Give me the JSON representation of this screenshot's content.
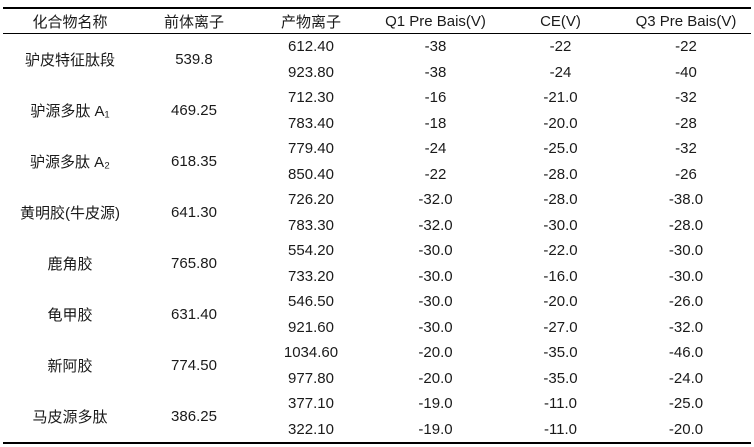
{
  "colors": {
    "background": "#ffffff",
    "text": "#1a1a1a",
    "rule": "#000000"
  },
  "table": {
    "headers": [
      {
        "label": "化合物名称"
      },
      {
        "label": "前体离子"
      },
      {
        "label": "产物离子"
      },
      {
        "label": "Q1 Pre Bais(V)"
      },
      {
        "label": "CE(V)"
      },
      {
        "label": "Q3 Pre Bais(V)"
      }
    ],
    "groups": [
      {
        "name": "驴皮特征肽段",
        "precursor": "539.8",
        "rows": [
          {
            "product": "612.40",
            "q1": "-38",
            "ce": "-22",
            "q3": "-22"
          },
          {
            "product": "923.80",
            "q1": "-38",
            "ce": "-24",
            "q3": "-40"
          }
        ]
      },
      {
        "name": "驴源多肽 A₁",
        "precursor": "469.25",
        "rows": [
          {
            "product": "712.30",
            "q1": "-16",
            "ce": "-21.0",
            "q3": "-32"
          },
          {
            "product": "783.40",
            "q1": "-18",
            "ce": "-20.0",
            "q3": "-28"
          }
        ]
      },
      {
        "name": "驴源多肽 A₂",
        "precursor": "618.35",
        "rows": [
          {
            "product": "779.40",
            "q1": "-24",
            "ce": "-25.0",
            "q3": "-32"
          },
          {
            "product": "850.40",
            "q1": "-22",
            "ce": "-28.0",
            "q3": "-26"
          }
        ]
      },
      {
        "name": "黄明胶(牛皮源)",
        "precursor": "641.30",
        "rows": [
          {
            "product": "726.20",
            "q1": "-32.0",
            "ce": "-28.0",
            "q3": "-38.0"
          },
          {
            "product": "783.30",
            "q1": "-32.0",
            "ce": "-30.0",
            "q3": "-28.0"
          }
        ]
      },
      {
        "name": "鹿角胶",
        "precursor": "765.80",
        "rows": [
          {
            "product": "554.20",
            "q1": "-30.0",
            "ce": "-22.0",
            "q3": "-30.0"
          },
          {
            "product": "733.20",
            "q1": "-30.0",
            "ce": "-16.0",
            "q3": "-30.0"
          }
        ]
      },
      {
        "name": "龟甲胶",
        "precursor": "631.40",
        "rows": [
          {
            "product": "546.50",
            "q1": "-30.0",
            "ce": "-20.0",
            "q3": "-26.0"
          },
          {
            "product": "921.60",
            "q1": "-30.0",
            "ce": "-27.0",
            "q3": "-32.0"
          }
        ]
      },
      {
        "name": "新阿胶",
        "precursor": "774.50",
        "rows": [
          {
            "product": "1034.60",
            "q1": "-20.0",
            "ce": "-35.0",
            "q3": "-46.0"
          },
          {
            "product": "977.80",
            "q1": "-20.0",
            "ce": "-35.0",
            "q3": "-24.0"
          }
        ]
      },
      {
        "name": "马皮源多肽",
        "precursor": "386.25",
        "rows": [
          {
            "product": "377.10",
            "q1": "-19.0",
            "ce": "-11.0",
            "q3": "-25.0"
          },
          {
            "product": "322.10",
            "q1": "-19.0",
            "ce": "-11.0",
            "q3": "-20.0"
          }
        ]
      }
    ]
  }
}
